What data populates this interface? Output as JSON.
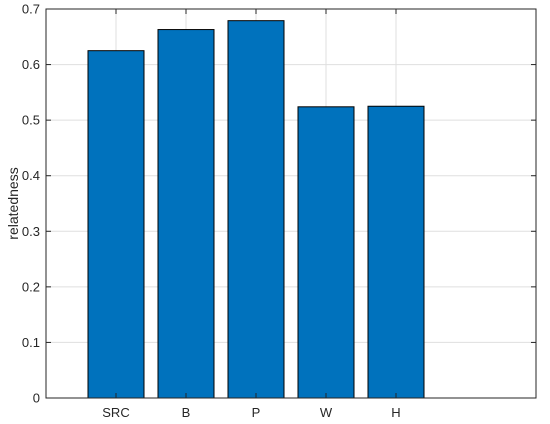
{
  "chart_data": {
    "type": "bar",
    "title": "",
    "xlabel": "",
    "ylabel": "relatedness",
    "categories": [
      "SRC",
      "B",
      "P",
      "W",
      "H"
    ],
    "values": [
      0.625,
      0.663,
      0.679,
      0.524,
      0.525
    ],
    "ylim": [
      0,
      0.7
    ],
    "yticks": [
      "0",
      "0.1",
      "0.2",
      "0.3",
      "0.4",
      "0.5",
      "0.6",
      "0.7"
    ],
    "grid": true,
    "legend": "none",
    "bar_color": "#0072BD",
    "bar_edge_color": "#000000",
    "grid_color": "#DFDFDF",
    "axis_color": "#262626"
  }
}
